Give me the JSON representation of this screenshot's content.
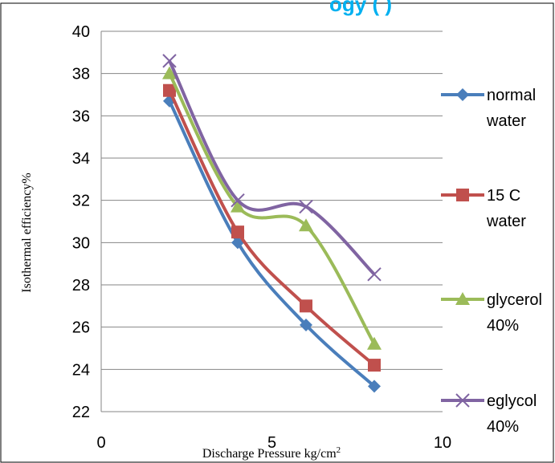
{
  "header_fragment": "ogy (              )",
  "chart_data": {
    "type": "line",
    "title": "",
    "xlabel": "Discharge Pressure kg/cm",
    "xlabel_sup": "2",
    "ylabel": "Isothermal efficiency%",
    "xlim": [
      0,
      10
    ],
    "ylim": [
      22,
      40
    ],
    "xticks": [
      0,
      5,
      10
    ],
    "yticks": [
      22,
      24,
      26,
      28,
      30,
      32,
      34,
      36,
      38,
      40
    ],
    "grid": "horizontal",
    "legend_position": "right",
    "series": [
      {
        "name": "normal water",
        "label_lines": [
          "normal",
          "water"
        ],
        "color": "#4A7EBB",
        "marker": "diamond",
        "x": [
          2,
          4,
          6,
          8
        ],
        "y": [
          36.7,
          30.0,
          26.1,
          23.2
        ]
      },
      {
        "name": "15 C water",
        "label_lines": [
          "15 C",
          "water"
        ],
        "color": "#C0504D",
        "marker": "square",
        "x": [
          2,
          4,
          6,
          8
        ],
        "y": [
          37.2,
          30.5,
          27.0,
          24.2
        ]
      },
      {
        "name": "glycerol 40%",
        "label_lines": [
          "glycerol",
          "40%"
        ],
        "color": "#9BBB59",
        "marker": "triangle",
        "x": [
          2,
          4,
          6,
          8
        ],
        "y": [
          38.0,
          31.7,
          30.8,
          25.2
        ]
      },
      {
        "name": "eglycol 40%",
        "label_lines": [
          "eglycol",
          "40%"
        ],
        "color": "#8064A2",
        "marker": "x",
        "x": [
          2,
          4,
          6,
          8
        ],
        "y": [
          38.6,
          32.0,
          31.7,
          28.5
        ]
      }
    ]
  }
}
